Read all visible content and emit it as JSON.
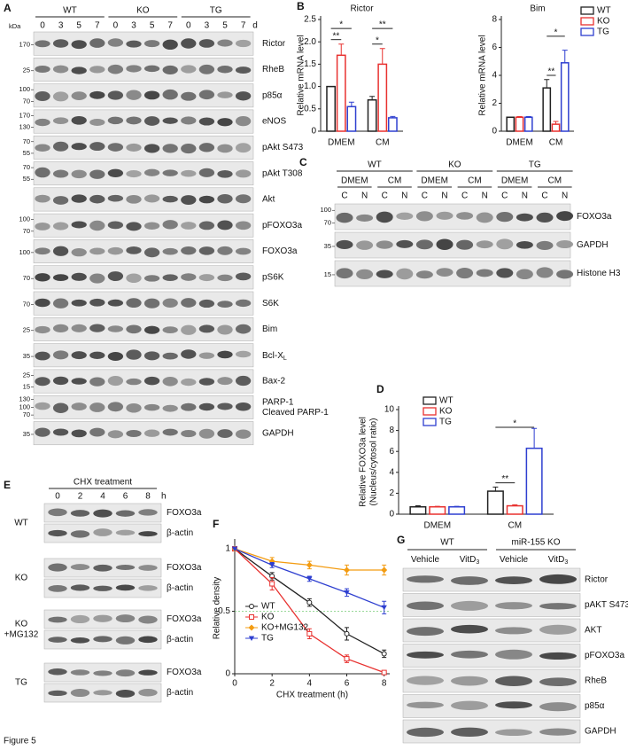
{
  "figure_label": "Figure 5",
  "panel_a": {
    "panel": "A",
    "unit_label": "kDa",
    "groups": [
      "WT",
      "KO",
      "TG"
    ],
    "times": [
      0,
      3,
      5,
      7
    ],
    "time_unit": "d",
    "rows": [
      {
        "label": "Rictor",
        "markers": [
          170
        ]
      },
      {
        "label": "RheB",
        "markers": [
          25
        ]
      },
      {
        "label": "p85α",
        "markers": [
          100,
          70
        ]
      },
      {
        "label": "eNOS",
        "markers": [
          170,
          130
        ]
      },
      {
        "label": "pAkt S473",
        "markers": [
          70,
          55
        ]
      },
      {
        "label": "pAkt T308",
        "markers": [
          70,
          55
        ]
      },
      {
        "label": "Akt",
        "markers": []
      },
      {
        "label": "pFOXO3a",
        "markers": [
          100,
          70
        ]
      },
      {
        "label": "FOXO3a",
        "markers": [
          100
        ]
      },
      {
        "label": "pS6K",
        "markers": [
          70
        ]
      },
      {
        "label": "S6K",
        "markers": [
          70
        ]
      },
      {
        "label": "Bim",
        "markers": [
          25
        ]
      },
      {
        "label": {
          "text": "Bcl-X",
          "sub": "L"
        },
        "markers": [
          35
        ]
      },
      {
        "label": "Bax-2",
        "markers": [
          25,
          15
        ]
      },
      {
        "label": "PARP-1",
        "label2": "Cleaved PARP-1",
        "markers": [
          130,
          100,
          70
        ]
      },
      {
        "label": "GAPDH",
        "markers": [
          35
        ]
      }
    ]
  },
  "panel_c": {
    "panel": "C",
    "groups": [
      "WT",
      "KO",
      "TG"
    ],
    "media": [
      "DMEM",
      "CM"
    ],
    "fractions": [
      "C",
      "N"
    ],
    "rows": [
      {
        "label": "FOXO3a",
        "markers": [
          100,
          70
        ]
      },
      {
        "label": "GAPDH",
        "markers": [
          35
        ]
      },
      {
        "label": "Histone H3",
        "markers": [
          15
        ]
      }
    ]
  },
  "panel_e": {
    "panel": "E",
    "title": "CHX treatment",
    "times": [
      0,
      2,
      4,
      6,
      8
    ],
    "time_unit": "h",
    "groups": [
      {
        "name": [
          "WT"
        ]
      },
      {
        "name": [
          "KO"
        ]
      },
      {
        "name": [
          "KO",
          "+MG132"
        ]
      },
      {
        "name": [
          "TG"
        ]
      }
    ],
    "proteins": [
      "FOXO3a",
      "β-actin"
    ]
  },
  "panel_g": {
    "panel": "G",
    "groups": [
      "WT",
      "miR-155 KO"
    ],
    "treatments": [
      {
        "text": "Vehicle"
      },
      {
        "text": "VitD",
        "sub": "3"
      }
    ],
    "rows": [
      "Rictor",
      "pAKT S473",
      "AKT",
      "pFOXO3a",
      "RheB",
      "p85α",
      "GAPDH"
    ]
  },
  "chart_data": [
    {
      "type": "bar",
      "panel": "B",
      "title": "Rictor",
      "ylabel": "Relative mRNA level",
      "categories": [
        "DMEM",
        "CM"
      ],
      "series": [
        {
          "name": "WT",
          "color": "#222222",
          "values": [
            1,
            0.7
          ],
          "errors": [
            0,
            0.08
          ]
        },
        {
          "name": "KO",
          "color": "#e8312f",
          "values": [
            1.7,
            1.5
          ],
          "errors": [
            0.25,
            0.35
          ]
        },
        {
          "name": "TG",
          "color": "#2e3fd0",
          "values": [
            0.55,
            0.3
          ],
          "errors": [
            0.1,
            0.03
          ]
        }
      ],
      "ylim": [
        0,
        2.5
      ],
      "yticks": [
        0,
        0.5,
        {
          "value": 1,
          "label": "1.0"
        },
        1.5,
        {
          "value": 2,
          "label": "2.0"
        },
        2.5
      ],
      "annotations": [
        "**",
        "*",
        "*",
        "**"
      ]
    },
    {
      "type": "bar",
      "title": "Bim",
      "ylabel": "Relative mRNA level",
      "categories": [
        "DMEM",
        "CM"
      ],
      "series": [
        {
          "name": "WT",
          "color": "#222222",
          "values": [
            1,
            3.1
          ],
          "errors": [
            0,
            0.6
          ]
        },
        {
          "name": "KO",
          "color": "#e8312f",
          "values": [
            1,
            0.5
          ],
          "errors": [
            0.05,
            0.2
          ]
        },
        {
          "name": "TG",
          "color": "#2e3fd0",
          "values": [
            1,
            4.9
          ],
          "errors": [
            0.05,
            0.9
          ]
        }
      ],
      "ylim": [
        0,
        8
      ],
      "yticks": [
        0,
        2,
        4,
        6,
        8
      ],
      "legend": "outside-right",
      "annotations": [
        "*",
        "**"
      ]
    },
    {
      "type": "bar",
      "panel": "D",
      "ylabel": "Relative FOXO3a level",
      "ylabel2": "(Nucleus/cytosol ratio)",
      "categories": [
        "DMEM",
        "CM"
      ],
      "series": [
        {
          "name": "WT",
          "color": "#222222",
          "values": [
            0.7,
            2.2
          ],
          "errors": [
            0.1,
            0.4
          ]
        },
        {
          "name": "KO",
          "color": "#e8312f",
          "values": [
            0.7,
            0.8
          ],
          "errors": [
            0.05,
            0.1
          ]
        },
        {
          "name": "TG",
          "color": "#2e3fd0",
          "values": [
            0.7,
            6.3
          ],
          "errors": [
            0.05,
            1.9
          ]
        }
      ],
      "ylim": [
        0,
        10
      ],
      "yticks": [
        0,
        2,
        4,
        6,
        8,
        10
      ],
      "legend": "upper-left",
      "annotations": [
        "*",
        "**"
      ]
    },
    {
      "type": "line",
      "panel": "F",
      "xlabel": "CHX treatment (h)",
      "ylabel": "Relative density",
      "x": [
        0,
        2,
        4,
        6,
        8
      ],
      "series": [
        {
          "name": "WT",
          "color": "#222222",
          "marker": "open-circle",
          "values": [
            1,
            0.78,
            0.57,
            0.32,
            0.16
          ],
          "errors": [
            0,
            0.03,
            0.03,
            0.05,
            0.03
          ]
        },
        {
          "name": "KO",
          "color": "#e8312f",
          "marker": "open-square",
          "values": [
            1,
            0.72,
            0.32,
            0.12,
            0.01
          ],
          "errors": [
            0,
            0.05,
            0.04,
            0.03,
            0.01
          ]
        },
        {
          "name": "KO+MG132",
          "color": "#f39c12",
          "marker": "diamond",
          "values": [
            1,
            0.9,
            0.87,
            0.83,
            0.83
          ],
          "errors": [
            0,
            0.03,
            0.03,
            0.04,
            0.04
          ]
        },
        {
          "name": "TG",
          "color": "#2e3fd0",
          "marker": "triangle-down",
          "values": [
            1,
            0.87,
            0.76,
            0.65,
            0.53
          ],
          "errors": [
            0,
            0.02,
            0.02,
            0.03,
            0.05
          ]
        }
      ],
      "xlim": [
        0,
        8.3
      ],
      "xticks": [
        0,
        2,
        4,
        6,
        8
      ],
      "ylim": [
        0,
        1.05
      ],
      "yticks": [
        0,
        0.5,
        1
      ],
      "legend": "lower-left"
    }
  ]
}
